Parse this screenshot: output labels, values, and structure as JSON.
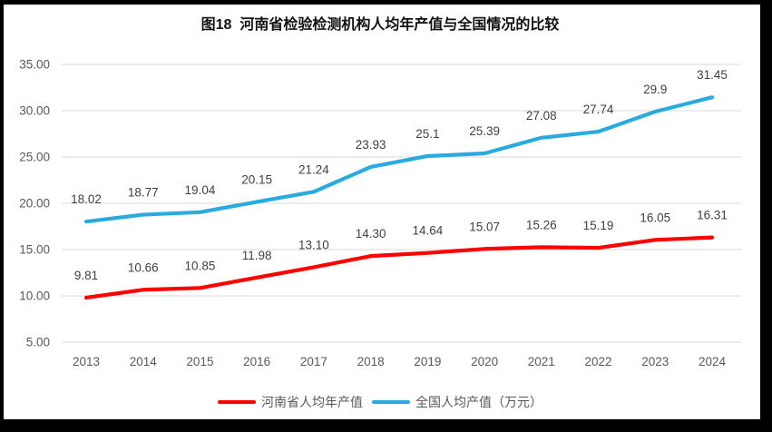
{
  "title": "图18  河南省检验检测机构人均年产值与全国情况的比较",
  "chart_data": {
    "type": "line",
    "title": "图18  河南省检验检测机构人均年产值与全国情况的比较",
    "categories": [
      "2013",
      "2014",
      "2015",
      "2016",
      "2017",
      "2018",
      "2019",
      "2020",
      "2021",
      "2022",
      "2023",
      "2024"
    ],
    "series": [
      {
        "name": "河南省人均年产值",
        "color": "#FF0000",
        "values": [
          9.81,
          10.66,
          10.85,
          11.98,
          13.1,
          14.3,
          14.64,
          15.07,
          15.26,
          15.19,
          16.05,
          16.31
        ],
        "labels": [
          "9.81",
          "10.66",
          "10.85",
          "11.98",
          "13.10",
          "14.30",
          "14.64",
          "15.07",
          "15.26",
          "15.19",
          "16.05",
          "16.31"
        ]
      },
      {
        "name": "全国人均产值（万元）",
        "color": "#29ABE2",
        "values": [
          18.02,
          18.77,
          19.04,
          20.15,
          21.24,
          23.93,
          25.1,
          25.39,
          27.08,
          27.74,
          29.9,
          31.45
        ],
        "labels": [
          "18.02",
          "18.77",
          "19.04",
          "20.15",
          "21.24",
          "23.93",
          "25.1",
          "25.39",
          "27.08",
          "27.74",
          "29.9",
          "31.45"
        ]
      }
    ],
    "ylim": [
      5,
      35
    ],
    "yticks": [
      "35.00",
      "30.00",
      "25.00",
      "20.00",
      "15.00",
      "10.00",
      "5.00"
    ],
    "xlabel": "",
    "ylabel": "",
    "grid": true,
    "legend_position": "bottom",
    "gridline_color": "#D9D9D9",
    "tick_label_color": "#595959",
    "data_label_color": "#404040"
  }
}
